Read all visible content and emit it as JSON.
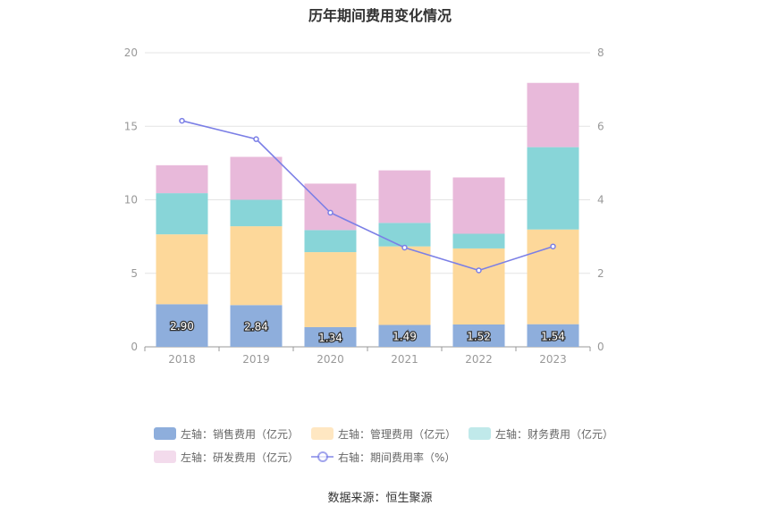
{
  "title": "历年期间费用变化情况",
  "source": "数据来源：恒生聚源",
  "chart_data": {
    "type": "bar",
    "stacked": true,
    "categories": [
      "2018",
      "2019",
      "2020",
      "2021",
      "2022",
      "2023"
    ],
    "left_axis": {
      "min": 0,
      "max": 20,
      "ticks": [
        0,
        5,
        10,
        15,
        20
      ]
    },
    "right_axis": {
      "min": 0,
      "max": 8,
      "ticks": [
        0,
        2,
        4,
        6,
        8
      ]
    },
    "series": [
      {
        "name": "左轴：销售费用（亿元）",
        "axis": "left",
        "type": "bar",
        "color": "#8eaedc",
        "values": [
          2.9,
          2.84,
          1.34,
          1.49,
          1.52,
          1.54
        ],
        "labels": [
          "2.90",
          "2.84",
          "1.34",
          "1.49",
          "1.52",
          "1.54"
        ]
      },
      {
        "name": "左轴：管理费用（亿元）",
        "axis": "left",
        "type": "bar",
        "color": "#fdd89a",
        "legend_color": "#ffe7c2",
        "values": [
          4.75,
          5.36,
          5.1,
          5.34,
          5.17,
          6.44
        ]
      },
      {
        "name": "左轴：财务费用（亿元）",
        "axis": "left",
        "type": "bar",
        "color": "#88d5d8",
        "legend_color": "#c0e9ea",
        "values": [
          2.8,
          1.8,
          1.5,
          1.6,
          1.0,
          5.6
        ]
      },
      {
        "name": "左轴：研发费用（亿元）",
        "axis": "left",
        "type": "bar",
        "color": "#e8b9da",
        "legend_color": "#f3dbec",
        "values": [
          1.9,
          2.92,
          3.16,
          3.57,
          3.83,
          4.37
        ]
      },
      {
        "name": "右轴：期间费用率（%）",
        "axis": "right",
        "type": "line",
        "color": "#7b7fe6",
        "values": [
          6.15,
          5.65,
          3.65,
          2.7,
          2.08,
          2.73
        ]
      }
    ],
    "legend_position": "bottom",
    "grid": true
  }
}
